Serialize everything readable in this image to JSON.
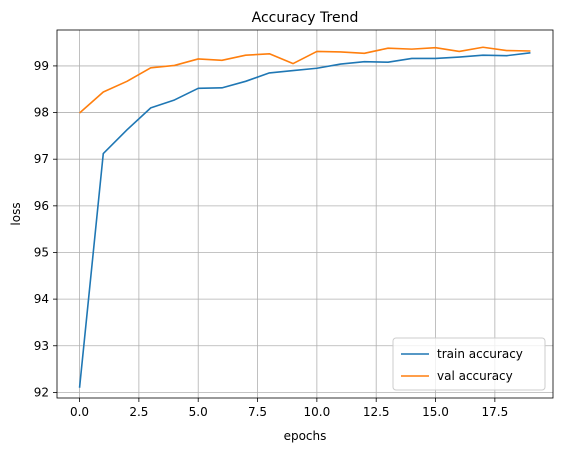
{
  "chart_data": {
    "type": "line",
    "title": "Accuracy Trend",
    "xlabel": "epochs",
    "ylabel": "loss",
    "xlim": [
      -0.95,
      19.95
    ],
    "ylim": [
      91.88,
      99.77
    ],
    "xticks": [
      0,
      2.5,
      5,
      7.5,
      10,
      12.5,
      15,
      17.5
    ],
    "xtick_labels": [
      "0.0",
      "2.5",
      "5.0",
      "7.5",
      "10.0",
      "12.5",
      "15.0",
      "17.5"
    ],
    "yticks": [
      92,
      93,
      94,
      95,
      96,
      97,
      98,
      99
    ],
    "ytick_labels": [
      "92",
      "93",
      "94",
      "95",
      "96",
      "97",
      "98",
      "99"
    ],
    "grid": true,
    "legend_position": "lower-right",
    "x": [
      0,
      1,
      2,
      3,
      4,
      5,
      6,
      7,
      8,
      9,
      10,
      11,
      12,
      13,
      14,
      15,
      16,
      17,
      18,
      19
    ],
    "series": [
      {
        "name": "train accuracy",
        "color": "#1f77b4",
        "values": [
          92.1,
          97.12,
          97.63,
          98.1,
          98.27,
          98.52,
          98.53,
          98.67,
          98.85,
          98.9,
          98.95,
          99.04,
          99.09,
          99.08,
          99.16,
          99.16,
          99.19,
          99.23,
          99.22,
          99.28
        ]
      },
      {
        "name": "val accuracy",
        "color": "#ff7f0e",
        "values": [
          97.99,
          98.44,
          98.67,
          98.96,
          99.01,
          99.15,
          99.12,
          99.23,
          99.26,
          99.05,
          99.31,
          99.3,
          99.27,
          99.38,
          99.36,
          99.39,
          99.31,
          99.4,
          99.33,
          99.32
        ]
      }
    ]
  }
}
